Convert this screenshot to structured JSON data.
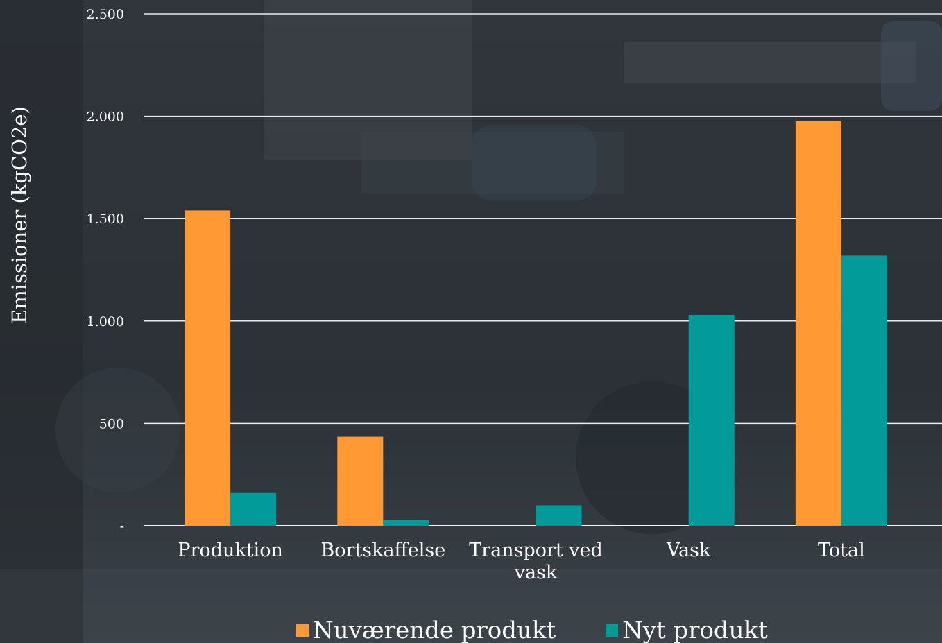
{
  "chart_data": {
    "type": "bar",
    "title": "",
    "xlabel": "",
    "ylabel": "Emissioner (kgCO2e)",
    "categories": [
      "Produktion",
      "Bortskaffelse",
      "Transport ved vask",
      "Vask",
      "Total"
    ],
    "category_lines": [
      [
        "Produktion"
      ],
      [
        "Bortskaffelse"
      ],
      [
        "Transport ved",
        "vask"
      ],
      [
        "Vask"
      ],
      [
        "Total"
      ]
    ],
    "series": [
      {
        "name": "Nuværende produkt",
        "color": "#fe9934",
        "values": [
          1540,
          435,
          0,
          0,
          1975
        ]
      },
      {
        "name": "Nyt produkt",
        "color": "#029b9a",
        "values": [
          160,
          28,
          100,
          1030,
          1320
        ]
      }
    ],
    "ylim": [
      0,
      2500
    ],
    "yticks": [
      0,
      500,
      1000,
      1500,
      2000,
      2500
    ],
    "ytick_labels": [
      "-",
      "500",
      "1.000",
      "1.500",
      "2.000",
      "2.500"
    ],
    "grid": true,
    "legend_position": "bottom"
  },
  "colors": {
    "gridline": "#ffffff",
    "text": "#ffffff"
  }
}
